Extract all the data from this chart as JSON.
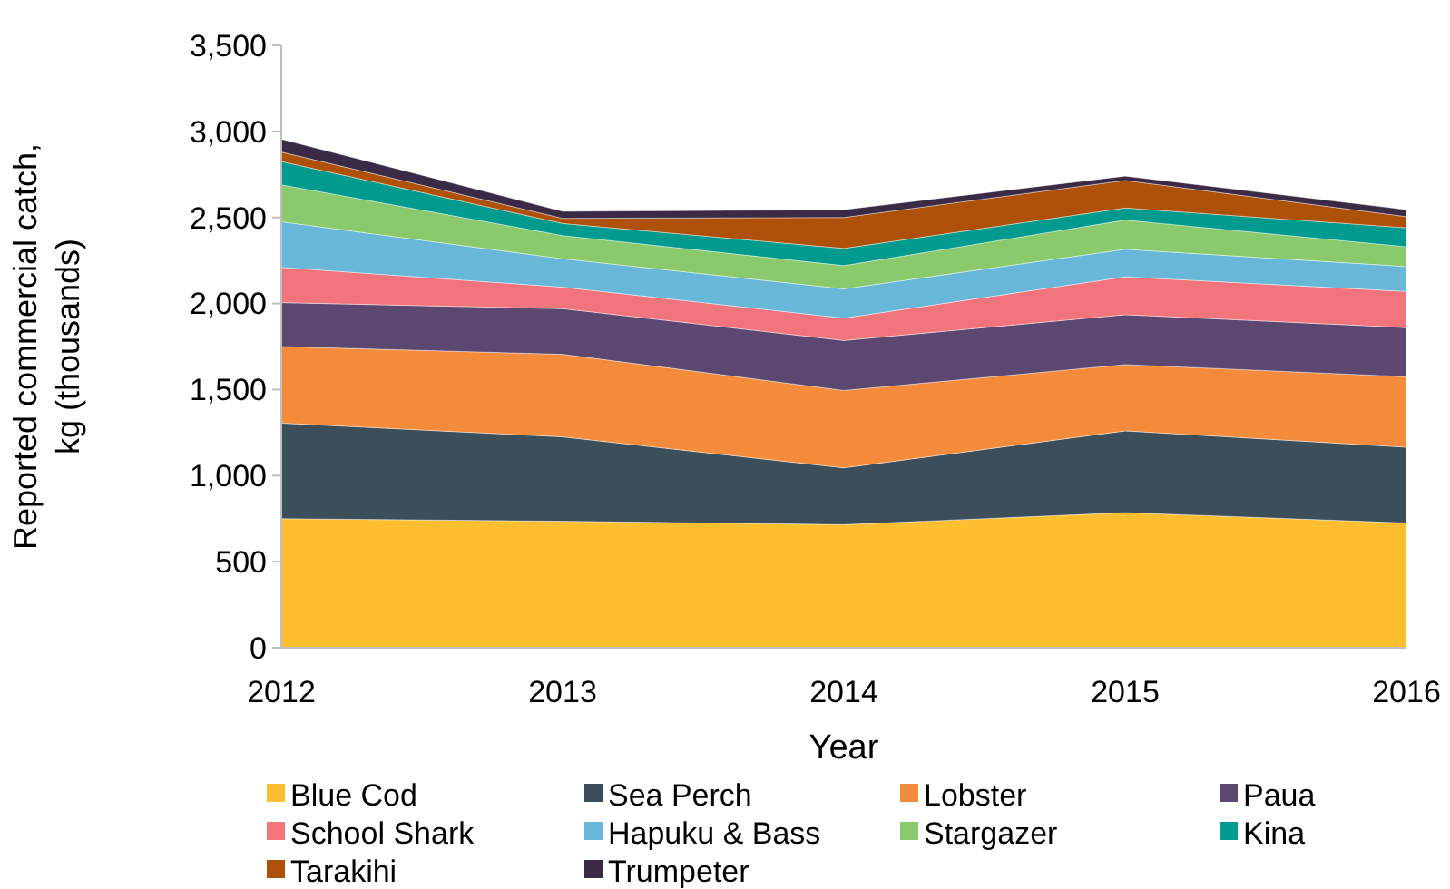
{
  "chart_data": {
    "type": "area",
    "stacked": true,
    "xlabel": "Year",
    "ylabel": "Reported commercial catch,\nkg (thousands)",
    "categories": [
      "2012",
      "2013",
      "2014",
      "2015",
      "2016"
    ],
    "ylim": [
      0,
      3500
    ],
    "yticks": [
      0,
      {
        "value": 500,
        "label": "500"
      },
      {
        "value": 1000,
        "label": "1,000"
      },
      {
        "value": 1500,
        "label": "1,500"
      },
      {
        "value": 2000,
        "label": "2,000"
      },
      {
        "value": 2500,
        "label": "2,500"
      },
      {
        "value": 3000,
        "label": "3,000"
      },
      {
        "value": 3500,
        "label": "3,500"
      }
    ],
    "grid": false,
    "legend": "bottom",
    "series": [
      {
        "name": "Blue Cod",
        "color": "#fdbf2f",
        "values": [
          750,
          735,
          715,
          785,
          725
        ]
      },
      {
        "name": "Sea Perch",
        "color": "#3b4e59",
        "values": [
          555,
          490,
          330,
          475,
          440
        ]
      },
      {
        "name": "Lobster",
        "color": "#f48c3c",
        "values": [
          445,
          480,
          450,
          385,
          410
        ]
      },
      {
        "name": "Paua",
        "color": "#5c4770",
        "values": [
          255,
          265,
          290,
          290,
          285
        ]
      },
      {
        "name": "School Shark",
        "color": "#f2757d",
        "values": [
          205,
          125,
          130,
          220,
          210
        ]
      },
      {
        "name": "Hapuku & Bass",
        "color": "#6ab8d9",
        "values": [
          265,
          165,
          170,
          160,
          145
        ]
      },
      {
        "name": "Stargazer",
        "color": "#8ac96c",
        "values": [
          215,
          135,
          135,
          170,
          115
        ]
      },
      {
        "name": "Kina",
        "color": "#009a8e",
        "values": [
          135,
          70,
          100,
          70,
          110
        ]
      },
      {
        "name": "Tarakihi",
        "color": "#ae5007",
        "values": [
          55,
          30,
          180,
          160,
          65
        ]
      },
      {
        "name": "Trumpeter",
        "color": "#3a2a45",
        "values": [
          75,
          40,
          45,
          25,
          40
        ]
      }
    ]
  }
}
